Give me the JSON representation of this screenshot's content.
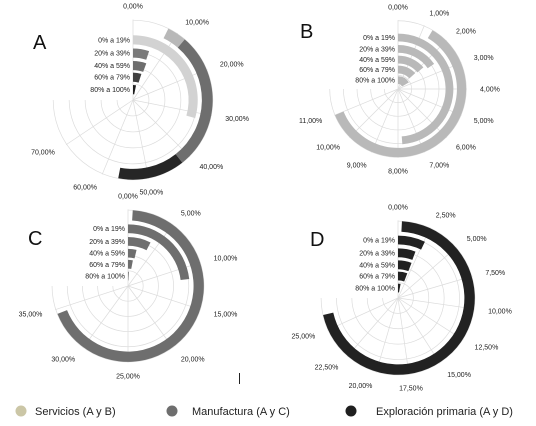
{
  "chart_data": [
    {
      "type": "radial-bar",
      "panel": "A",
      "categories": [
        "0% a 19%",
        "20% a 39%",
        "40% a 59%",
        "60% a 79%",
        "80% a 100%"
      ],
      "values": [
        31.5,
        5.4,
        5.9,
        5.3,
        3.5
      ],
      "colors": [
        "#d2d2d2",
        "#7a7a7a",
        "#6e6e6e",
        "#404040",
        "#1e1e1e"
      ],
      "outer_arc": {
        "start": 7.8,
        "end": 56.5,
        "segments": [
          {
            "start": 7.8,
            "end": 12.0,
            "color": "#b8b8b8"
          },
          {
            "start": 12.0,
            "end": 42.0,
            "color": "#6e6e6e"
          },
          {
            "start": 42.0,
            "end": 56.5,
            "color": "#262626"
          }
        ]
      },
      "ylim": [
        0,
        80
      ],
      "ticks": [
        "0,00%",
        "10,00%",
        "20,00%",
        "30,00%",
        "40,00%",
        "50,00%",
        "60,00%",
        "70,00%"
      ]
    },
    {
      "type": "radial-bar",
      "panel": "B",
      "categories": [
        "0% a 19%",
        "20% a 39%",
        "40% a 59%",
        "60% a 79%",
        "80% a 100%"
      ],
      "values": [
        7.8,
        2.45,
        2.2,
        2.1,
        2.6
      ],
      "colors": [
        "#b9b9b9",
        "#b9b9b9",
        "#b9b9b9",
        "#b9b9b9",
        "#b9b9b9"
      ],
      "outer_arc": {
        "start": 1.35,
        "end": 11.0,
        "segments": [
          {
            "start": 1.35,
            "end": 11.0,
            "color": "#b9b9b9"
          }
        ]
      },
      "ylim": [
        0,
        12
      ],
      "ticks": [
        "0,00%",
        "1,00%",
        "2,00%",
        "3,00%",
        "4,00%",
        "5,00%",
        "6,00%",
        "7,00%",
        "8,00%",
        "9,00%",
        "10,00%",
        "11,00%"
      ]
    },
    {
      "type": "radial-bar",
      "panel": "C",
      "categories": [
        "0% a 19%",
        "20% a 39%",
        "40% a 59%",
        "60% a 79%",
        "80% a 100%"
      ],
      "values": [
        11.6,
        3.8,
        1.85,
        1.5,
        0.5
      ],
      "colors": [
        "#6e6e6e",
        "#6e6e6e",
        "#6e6e6e",
        "#6e6e6e",
        "#6e6e6e"
      ],
      "outer_arc": {
        "start": 0.5,
        "end": 34.5,
        "segments": [
          {
            "start": 0.5,
            "end": 34.5,
            "color": "#6e6e6e"
          }
        ]
      },
      "ylim": [
        0,
        37.5
      ],
      "ticks": [
        "0,00%",
        "5,00%",
        "10,00%",
        "15,00%",
        "20,00%",
        "25,00%",
        "30,00%",
        "35,00%"
      ]
    },
    {
      "type": "radial-bar",
      "panel": "D",
      "categories": [
        "0% a 19%",
        "20% a 39%",
        "40% a 59%",
        "60% a 79%",
        "80% a 100%"
      ],
      "values": [
        2.6,
        2.1,
        2.15,
        2.1,
        1.05
      ],
      "colors": [
        "#222222",
        "#222222",
        "#222222",
        "#222222",
        "#222222"
      ],
      "outer_arc": {
        "start": 0.3,
        "end": 26.2,
        "segments": [
          {
            "start": 0.3,
            "end": 26.2,
            "color": "#222222"
          }
        ]
      },
      "ylim": [
        0,
        27.5
      ],
      "ticks": [
        "0,00%",
        "2,50%",
        "5,00%",
        "7,50%",
        "10,00%",
        "12,50%",
        "15,00%",
        "17,50%",
        "20,00%",
        "22,50%",
        "25,00%"
      ]
    }
  ],
  "legend": {
    "items": [
      {
        "label": "Servicios (A y B)",
        "color": "#cbc6a6"
      },
      {
        "label": "Manufactura (A y C)",
        "color": "#6e6e6e"
      },
      {
        "label": "Exploración primaria (A y D)",
        "color": "#1f1f1f"
      }
    ]
  }
}
